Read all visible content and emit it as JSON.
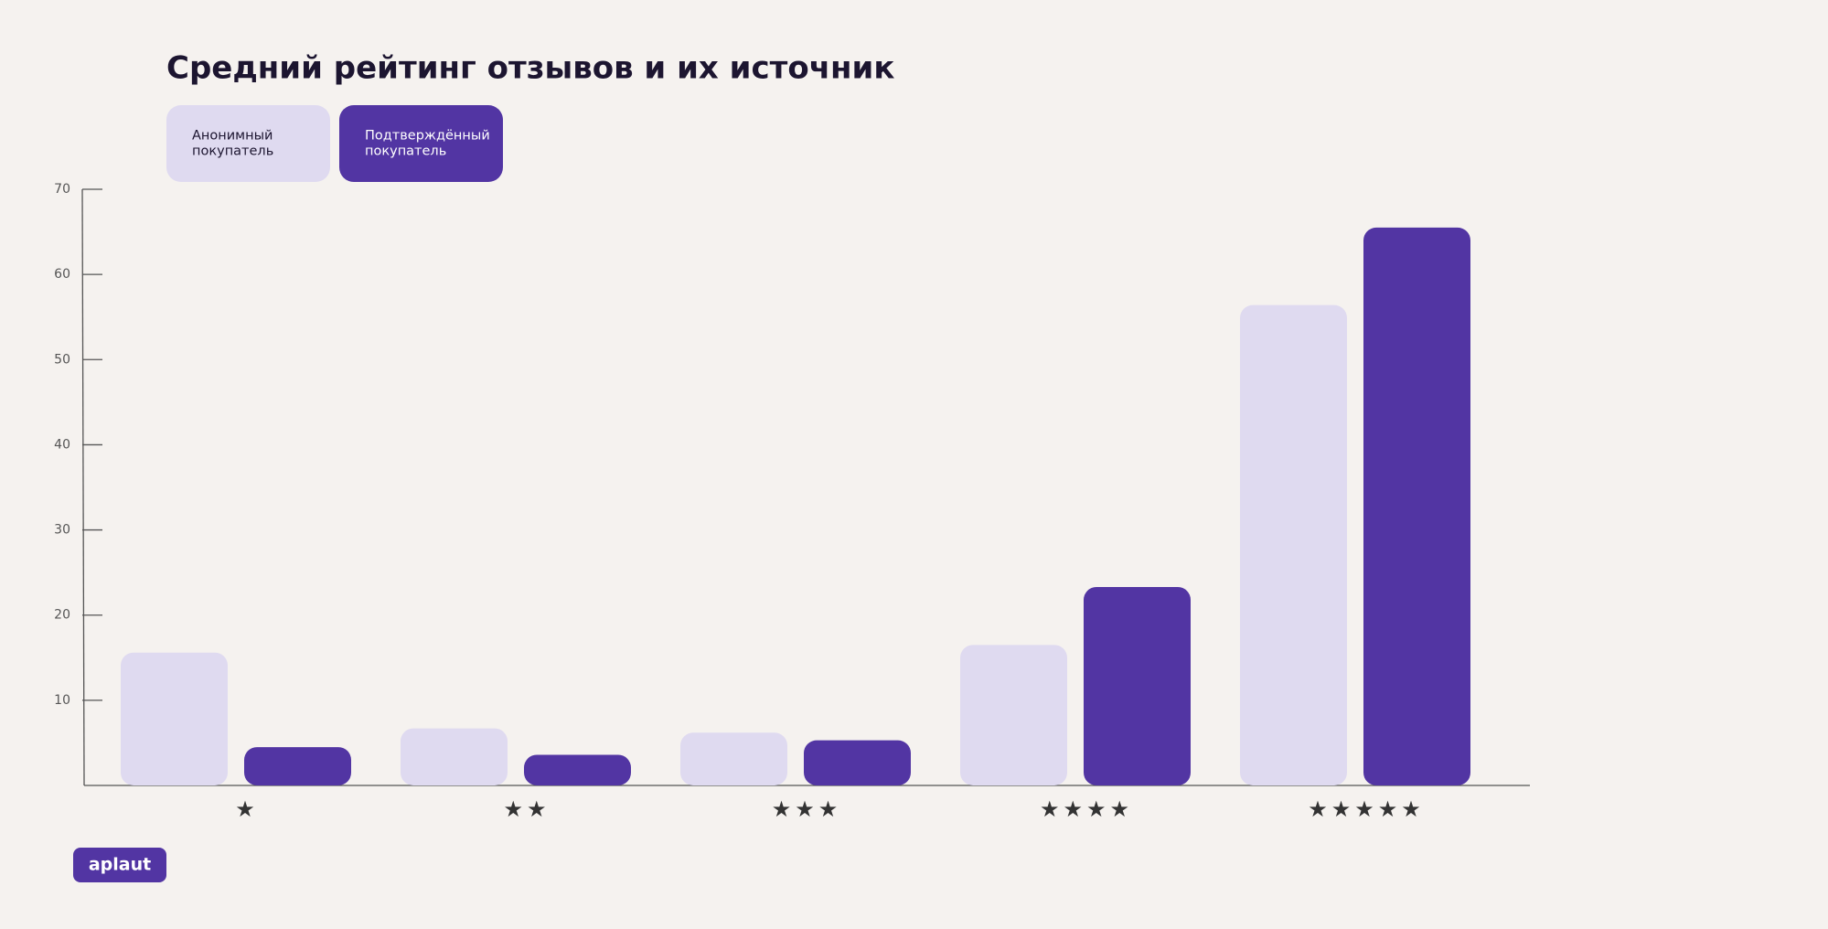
{
  "chart_data": {
    "type": "bar",
    "title": "Средний рейтинг отзывов и их источник",
    "categories": [
      "★",
      "★★",
      "★★★",
      "★★★★",
      "★★★★★"
    ],
    "series": [
      {
        "name": "Анонимный покупатель",
        "color": "#dfdaf0",
        "values": [
          15.6,
          6.7,
          6.2,
          16.5,
          56.4
        ]
      },
      {
        "name": "Подтверждённый покупатель",
        "color": "#5235a3",
        "values": [
          4.5,
          3.6,
          5.3,
          23.3,
          65.5
        ]
      }
    ],
    "ylim": [
      0,
      70
    ],
    "yticks": [
      10,
      20,
      30,
      40,
      50,
      60,
      70
    ]
  },
  "logo": "aplaut"
}
